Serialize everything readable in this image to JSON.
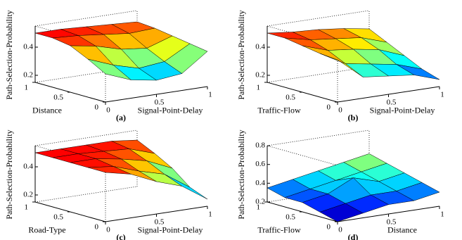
{
  "chart_data": [
    {
      "type": "surface",
      "panel_label": "(a)",
      "x_label": "Signal-Point-Delay",
      "y_label": "Distance",
      "z_label": "Path-Selection-Probability",
      "x": [
        0,
        0.25,
        0.5,
        0.75,
        1
      ],
      "y": [
        0,
        0.25,
        0.5,
        0.75,
        1
      ],
      "z": [
        [
          0.35,
          0.28,
          0.25,
          0.27,
          0.4
        ],
        [
          0.42,
          0.35,
          0.3,
          0.32,
          0.42
        ],
        [
          0.48,
          0.45,
          0.4,
          0.38,
          0.44
        ],
        [
          0.5,
          0.49,
          0.47,
          0.45,
          0.46
        ],
        [
          0.5,
          0.5,
          0.49,
          0.48,
          0.47
        ]
      ],
      "xlim": [
        0,
        1
      ],
      "ylim": [
        0,
        1
      ],
      "zlim": [
        0.15,
        0.55
      ],
      "xticks": [
        0,
        0.5,
        1
      ],
      "yticks": [
        0,
        0.5,
        1
      ],
      "zticks": [
        0.2,
        0.4
      ]
    },
    {
      "type": "surface",
      "panel_label": "(b)",
      "x_label": "Signal-Point-Delay",
      "y_label": "Traffic-Flow",
      "z_label": "Path-Selection-Probability",
      "x": [
        0,
        0.25,
        0.5,
        0.75,
        1
      ],
      "y": [
        0,
        0.25,
        0.5,
        0.75,
        1
      ],
      "z": [
        [
          0.45,
          0.3,
          0.28,
          0.26,
          0.2
        ],
        [
          0.46,
          0.36,
          0.33,
          0.3,
          0.24
        ],
        [
          0.48,
          0.42,
          0.4,
          0.37,
          0.3
        ],
        [
          0.5,
          0.46,
          0.44,
          0.42,
          0.36
        ],
        [
          0.5,
          0.48,
          0.47,
          0.45,
          0.42
        ]
      ],
      "xlim": [
        0,
        1
      ],
      "ylim": [
        0,
        1
      ],
      "zlim": [
        0.15,
        0.55
      ],
      "xticks": [
        0,
        0.5,
        1
      ],
      "yticks": [
        0,
        0.5,
        1
      ],
      "zticks": [
        0.2,
        0.4
      ]
    },
    {
      "type": "surface",
      "panel_label": "(c)",
      "x_label": "Signal-Point-Delay",
      "y_label": "Road-Type",
      "z_label": "Path-Selection-Probability",
      "x": [
        0,
        0.25,
        0.5,
        0.75,
        1
      ],
      "y": [
        0,
        0.25,
        0.5,
        0.75,
        1
      ],
      "z": [
        [
          0.5,
          0.46,
          0.38,
          0.32,
          0.2
        ],
        [
          0.5,
          0.48,
          0.42,
          0.37,
          0.25
        ],
        [
          0.5,
          0.5,
          0.47,
          0.43,
          0.35
        ],
        [
          0.5,
          0.5,
          0.49,
          0.48,
          0.42
        ],
        [
          0.5,
          0.5,
          0.5,
          0.5,
          0.48
        ]
      ],
      "xlim": [
        0,
        1
      ],
      "ylim": [
        0,
        1
      ],
      "zlim": [
        0.15,
        0.55
      ],
      "xticks": [
        0,
        0.5,
        1
      ],
      "yticks": [
        0,
        0.5,
        1
      ],
      "zticks": [
        0.2,
        0.4
      ]
    },
    {
      "type": "surface",
      "panel_label": "(d)",
      "x_label": "Distance",
      "y_label": "Traffic-Flow",
      "z_label": "Path-Selection-Probability",
      "x": [
        0,
        0.25,
        0.5,
        0.75,
        1
      ],
      "y": [
        0,
        0.25,
        0.5,
        0.75,
        1
      ],
      "z": [
        [
          0.2,
          0.25,
          0.3,
          0.3,
          0.35
        ],
        [
          0.25,
          0.3,
          0.35,
          0.35,
          0.4
        ],
        [
          0.3,
          0.35,
          0.48,
          0.4,
          0.45
        ],
        [
          0.3,
          0.35,
          0.4,
          0.45,
          0.5
        ],
        [
          0.35,
          0.4,
          0.45,
          0.5,
          0.55
        ]
      ],
      "xlim": [
        0,
        1
      ],
      "ylim": [
        0,
        1
      ],
      "zlim": [
        0.2,
        0.8
      ],
      "xticks": [
        0,
        0.5,
        1
      ],
      "yticks": [
        0,
        0.5,
        1
      ],
      "zticks": [
        0.2,
        0.4,
        0.6,
        0.8
      ]
    }
  ]
}
